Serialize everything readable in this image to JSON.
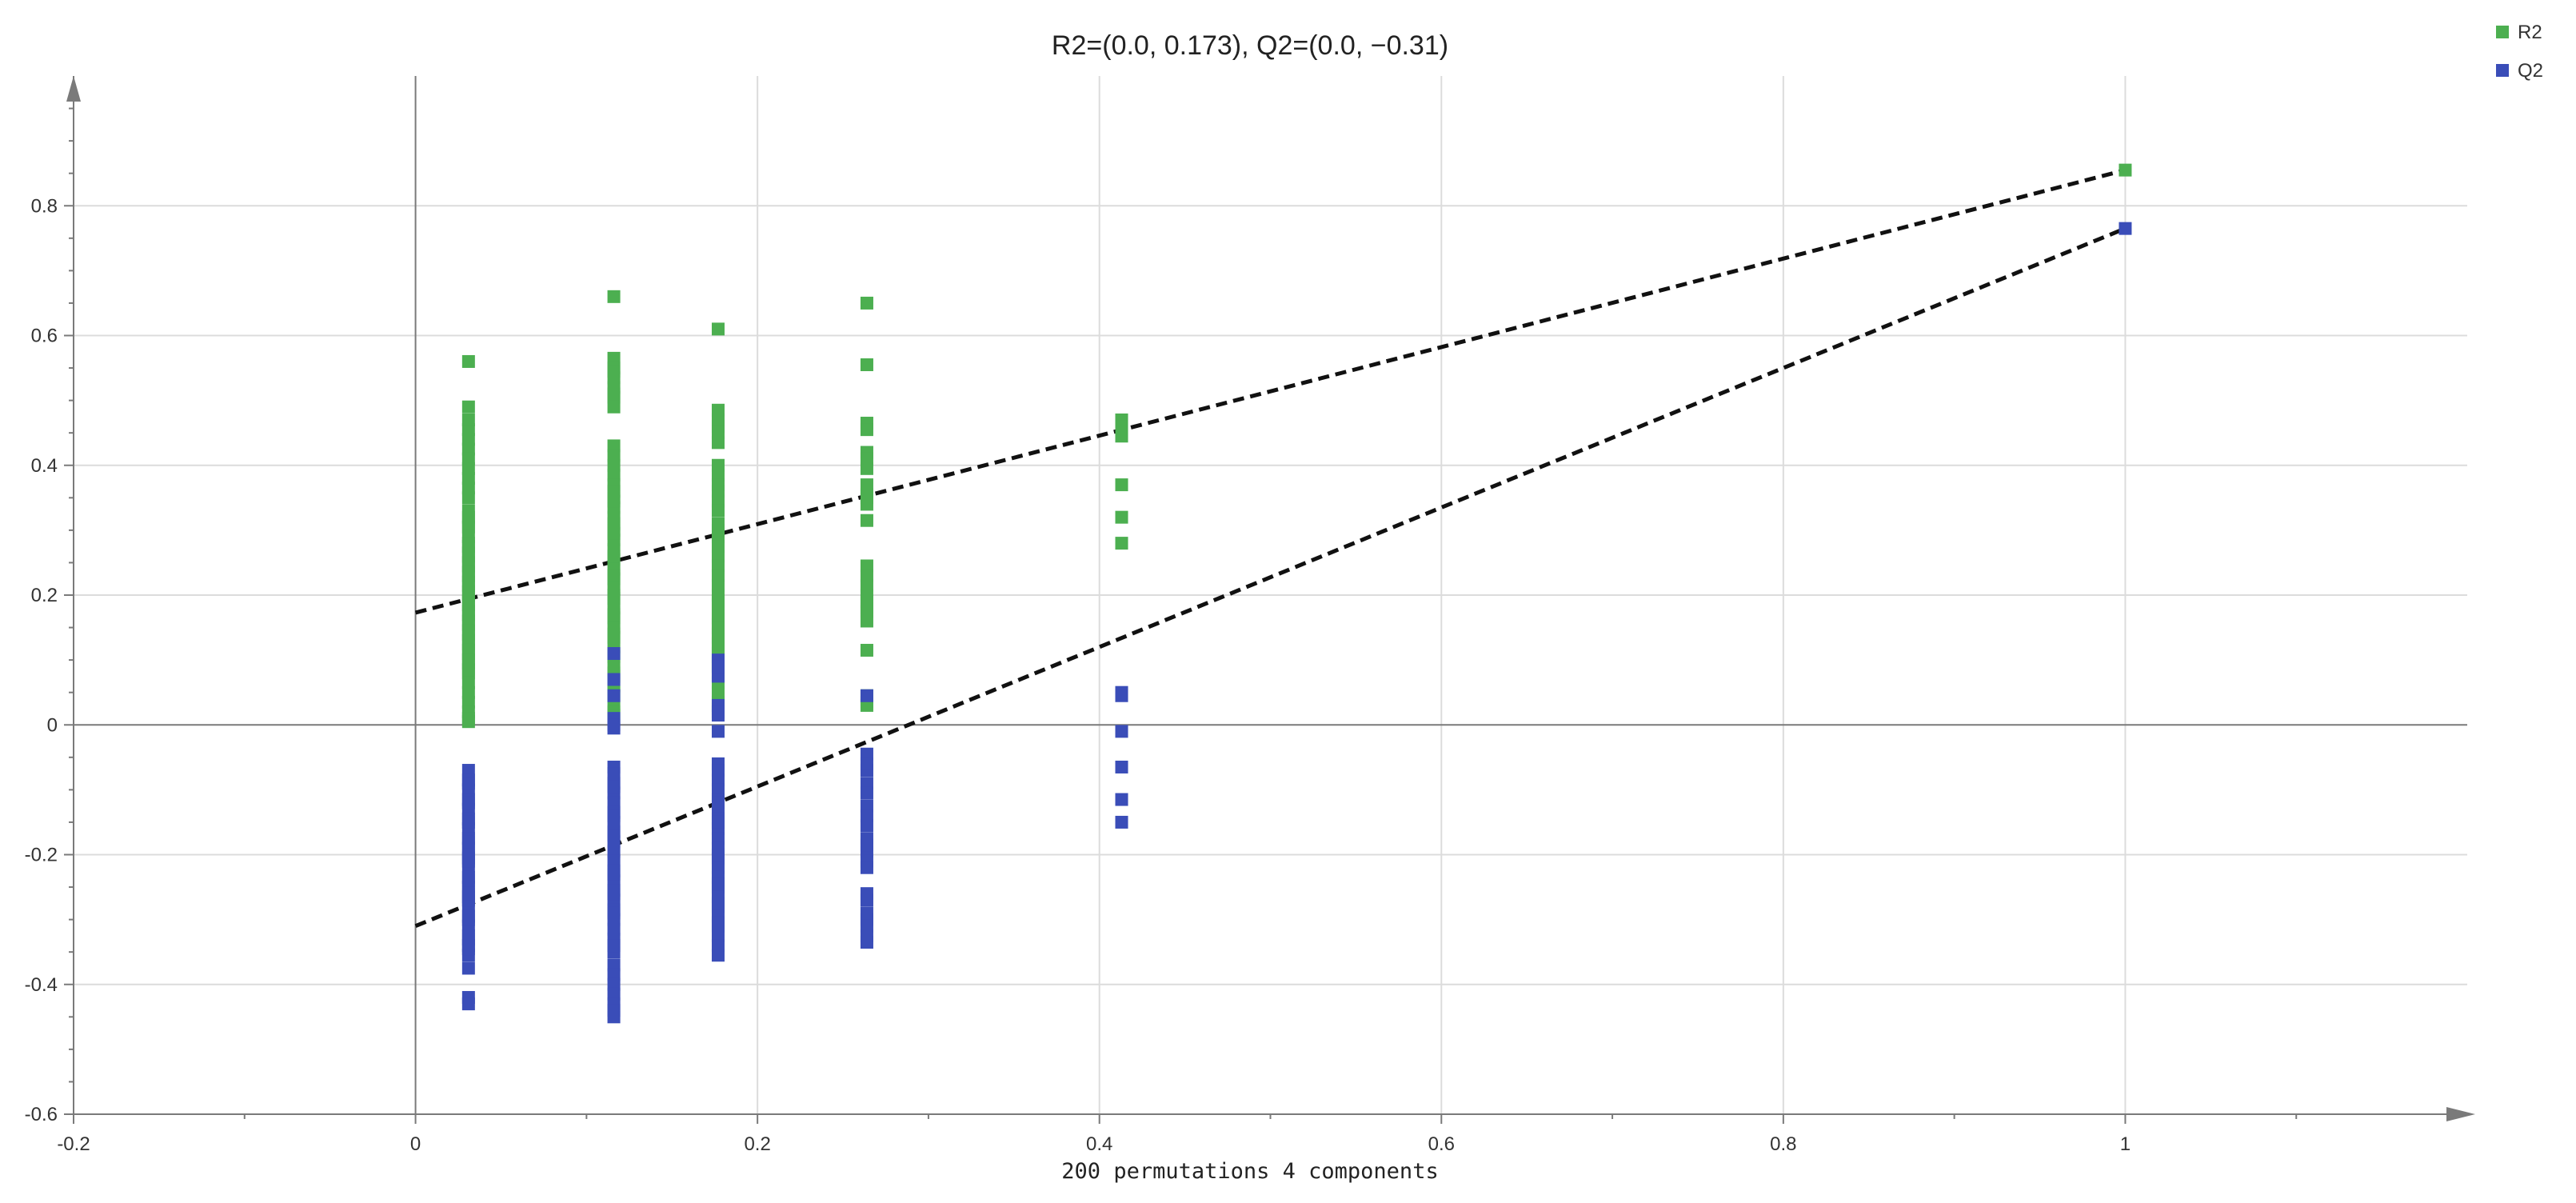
{
  "chart_data": {
    "type": "scatter",
    "title": "R2=(0.0, 0.173), Q2=(0.0, −0.31)",
    "xlabel": "200 permutations 4 components",
    "ylabel": "",
    "xlim": [
      -0.2,
      1.2
    ],
    "ylim": [
      -0.6,
      1.0
    ],
    "x_ticks": [
      -0.2,
      0,
      0.2,
      0.4,
      0.6,
      0.8,
      1
    ],
    "x_tick_labels": [
      "-0.2",
      "0",
      "0.2",
      "0.4",
      "0.6",
      "0.8",
      "1"
    ],
    "y_ticks": [
      -0.6,
      -0.4,
      -0.2,
      0,
      0.2,
      0.4,
      0.6,
      0.8
    ],
    "y_tick_labels": [
      "-0.6",
      "-0.4",
      "-0.2",
      "0",
      "0.2",
      "0.4",
      "0.6",
      "0.8"
    ],
    "grid": true,
    "legend_position": "top-right",
    "colors": {
      "R2": "#4caf50",
      "Q2": "#3a4db8",
      "regression": "#111111",
      "axis": "#7a7a7a",
      "grid": "#dcdcdc"
    },
    "series": [
      {
        "name": "R2",
        "x": [
          0.031,
          0.031,
          0.031,
          0.031,
          0.031,
          0.031,
          0.031,
          0.031,
          0.031,
          0.031,
          0.031,
          0.031,
          0.031,
          0.031,
          0.031,
          0.031,
          0.031,
          0.031,
          0.031,
          0.031,
          0.031,
          0.031,
          0.031,
          0.031,
          0.031,
          0.031,
          0.031,
          0.031,
          0.031,
          0.031,
          0.031,
          0.031,
          0.031,
          0.031,
          0.031,
          0.031,
          0.031,
          0.031,
          0.031,
          0.031,
          0.031,
          0.031,
          0.031,
          0.031,
          0.031,
          0.031,
          0.031,
          0.031,
          0.031,
          0.031,
          0.116,
          0.116,
          0.116,
          0.116,
          0.116,
          0.116,
          0.116,
          0.116,
          0.116,
          0.116,
          0.116,
          0.116,
          0.116,
          0.116,
          0.116,
          0.116,
          0.116,
          0.116,
          0.116,
          0.116,
          0.116,
          0.116,
          0.116,
          0.116,
          0.116,
          0.116,
          0.116,
          0.116,
          0.116,
          0.116,
          0.116,
          0.116,
          0.116,
          0.116,
          0.116,
          0.116,
          0.116,
          0.116,
          0.116,
          0.116,
          0.116,
          0.116,
          0.116,
          0.116,
          0.116,
          0.116,
          0.116,
          0.116,
          0.116,
          0.116,
          0.177,
          0.177,
          0.177,
          0.177,
          0.177,
          0.177,
          0.177,
          0.177,
          0.177,
          0.177,
          0.177,
          0.177,
          0.177,
          0.177,
          0.177,
          0.177,
          0.177,
          0.177,
          0.177,
          0.177,
          0.177,
          0.177,
          0.177,
          0.177,
          0.177,
          0.177,
          0.177,
          0.177,
          0.177,
          0.177,
          0.177,
          0.177,
          0.177,
          0.177,
          0.177,
          0.177,
          0.177,
          0.177,
          0.177,
          0.177,
          0.264,
          0.264,
          0.264,
          0.264,
          0.264,
          0.264,
          0.264,
          0.264,
          0.264,
          0.264,
          0.264,
          0.264,
          0.264,
          0.264,
          0.264,
          0.264,
          0.264,
          0.264,
          0.264,
          0.264,
          0.264,
          0.264,
          0.264,
          0.264,
          0.413,
          0.413,
          0.413,
          0.413,
          0.413,
          0.413,
          1.0
        ],
        "y": [
          0.56,
          0.49,
          0.455,
          0.44,
          0.425,
          0.41,
          0.395,
          0.38,
          0.365,
          0.35,
          0.32,
          0.305,
          0.29,
          0.275,
          0.26,
          0.245,
          0.23,
          0.215,
          0.2,
          0.185,
          0.17,
          0.155,
          0.14,
          0.125,
          0.11,
          0.095,
          0.08,
          0.065,
          0.05,
          0.035,
          0.02,
          0.01,
          0.005,
          0.47,
          0.33,
          0.31,
          0.28,
          0.265,
          0.25,
          0.235,
          0.22,
          0.205,
          0.19,
          0.175,
          0.16,
          0.145,
          0.13,
          0.115,
          0.1,
          0.085,
          0.66,
          0.565,
          0.55,
          0.535,
          0.52,
          0.505,
          0.49,
          0.43,
          0.415,
          0.4,
          0.385,
          0.37,
          0.35,
          0.335,
          0.32,
          0.3,
          0.285,
          0.27,
          0.255,
          0.24,
          0.225,
          0.21,
          0.195,
          0.18,
          0.165,
          0.15,
          0.135,
          0.12,
          0.105,
          0.09,
          0.075,
          0.06,
          0.045,
          0.03,
          0.545,
          0.51,
          0.36,
          0.345,
          0.31,
          0.295,
          0.26,
          0.23,
          0.2,
          0.17,
          0.14,
          0.11,
          0.08,
          0.05,
          0.02,
          0.015,
          0.61,
          0.485,
          0.46,
          0.435,
          0.4,
          0.385,
          0.36,
          0.345,
          0.33,
          0.31,
          0.29,
          0.26,
          0.245,
          0.23,
          0.215,
          0.2,
          0.185,
          0.17,
          0.155,
          0.14,
          0.125,
          0.11,
          0.095,
          0.08,
          0.065,
          0.05,
          0.035,
          0.025,
          0.47,
          0.45,
          0.37,
          0.3,
          0.275,
          0.19,
          0.165,
          0.15,
          0.135,
          0.12,
          0.105,
          0.09,
          0.65,
          0.555,
          0.465,
          0.455,
          0.42,
          0.41,
          0.395,
          0.37,
          0.355,
          0.34,
          0.315,
          0.245,
          0.23,
          0.215,
          0.19,
          0.175,
          0.16,
          0.115,
          0.045,
          0.035,
          0.03,
          0.2,
          0.18,
          0.35,
          0.47,
          0.445,
          0.37,
          0.32,
          0.28,
          0.46,
          0.855
        ]
      },
      {
        "name": "Q2",
        "x": [
          0.031,
          0.031,
          0.031,
          0.031,
          0.031,
          0.031,
          0.031,
          0.031,
          0.031,
          0.031,
          0.031,
          0.031,
          0.031,
          0.031,
          0.031,
          0.031,
          0.031,
          0.031,
          0.031,
          0.031,
          0.031,
          0.031,
          0.031,
          0.031,
          0.031,
          0.031,
          0.031,
          0.031,
          0.031,
          0.031,
          0.031,
          0.031,
          0.031,
          0.031,
          0.031,
          0.116,
          0.116,
          0.116,
          0.116,
          0.116,
          0.116,
          0.116,
          0.116,
          0.116,
          0.116,
          0.116,
          0.116,
          0.116,
          0.116,
          0.116,
          0.116,
          0.116,
          0.116,
          0.116,
          0.116,
          0.116,
          0.116,
          0.116,
          0.116,
          0.116,
          0.116,
          0.116,
          0.116,
          0.116,
          0.116,
          0.116,
          0.116,
          0.116,
          0.116,
          0.116,
          0.116,
          0.116,
          0.116,
          0.116,
          0.116,
          0.177,
          0.177,
          0.177,
          0.177,
          0.177,
          0.177,
          0.177,
          0.177,
          0.177,
          0.177,
          0.177,
          0.177,
          0.177,
          0.177,
          0.177,
          0.177,
          0.177,
          0.177,
          0.177,
          0.177,
          0.177,
          0.177,
          0.177,
          0.177,
          0.177,
          0.177,
          0.177,
          0.177,
          0.177,
          0.177,
          0.177,
          0.177,
          0.177,
          0.177,
          0.264,
          0.264,
          0.264,
          0.264,
          0.264,
          0.264,
          0.264,
          0.264,
          0.264,
          0.264,
          0.264,
          0.264,
          0.264,
          0.264,
          0.264,
          0.264,
          0.264,
          0.264,
          0.264,
          0.264,
          0.264,
          0.413,
          0.413,
          0.413,
          0.413,
          0.413,
          0.413,
          1.0
        ],
        "y": [
          -0.07,
          -0.085,
          -0.1,
          -0.115,
          -0.13,
          -0.145,
          -0.16,
          -0.175,
          -0.19,
          -0.205,
          -0.22,
          -0.235,
          -0.25,
          -0.265,
          -0.28,
          -0.295,
          -0.31,
          -0.325,
          -0.34,
          -0.355,
          -0.375,
          -0.42,
          -0.43,
          -0.09,
          -0.12,
          -0.15,
          -0.18,
          -0.21,
          -0.24,
          -0.27,
          -0.3,
          -0.33,
          -0.345,
          -0.2,
          -0.26,
          0.11,
          0.07,
          0.045,
          0.01,
          -0.005,
          -0.065,
          -0.09,
          -0.105,
          -0.12,
          -0.135,
          -0.15,
          -0.165,
          -0.18,
          -0.195,
          -0.21,
          -0.225,
          -0.24,
          -0.255,
          -0.27,
          -0.285,
          -0.3,
          -0.315,
          -0.33,
          -0.35,
          -0.37,
          -0.385,
          -0.4,
          -0.415,
          -0.43,
          -0.45,
          0.0,
          -0.075,
          -0.095,
          -0.14,
          -0.17,
          -0.23,
          -0.26,
          -0.29,
          -0.34,
          -0.44,
          0.1,
          0.075,
          0.03,
          0.015,
          -0.01,
          -0.06,
          -0.085,
          -0.1,
          -0.115,
          -0.13,
          -0.145,
          -0.16,
          -0.175,
          -0.19,
          -0.205,
          -0.22,
          -0.235,
          -0.25,
          -0.265,
          -0.28,
          -0.295,
          -0.31,
          -0.325,
          -0.34,
          -0.355,
          0.09,
          0.02,
          -0.07,
          -0.12,
          -0.15,
          -0.2,
          -0.245,
          -0.275,
          -0.305,
          0.045,
          -0.045,
          -0.07,
          -0.09,
          -0.105,
          -0.125,
          -0.14,
          -0.155,
          -0.175,
          -0.195,
          -0.21,
          -0.26,
          -0.29,
          -0.3,
          -0.31,
          -0.325,
          -0.335,
          -0.06,
          -0.185,
          -0.22,
          -0.27,
          0.05,
          -0.01,
          -0.065,
          -0.115,
          -0.15,
          0.045,
          0.765
        ]
      }
    ],
    "regression_lines": [
      {
        "series": "R2",
        "x": [
          0,
          1.0
        ],
        "y": [
          0.173,
          0.855
        ]
      },
      {
        "series": "Q2",
        "x": [
          0,
          1.0
        ],
        "y": [
          -0.31,
          0.765
        ]
      }
    ]
  }
}
